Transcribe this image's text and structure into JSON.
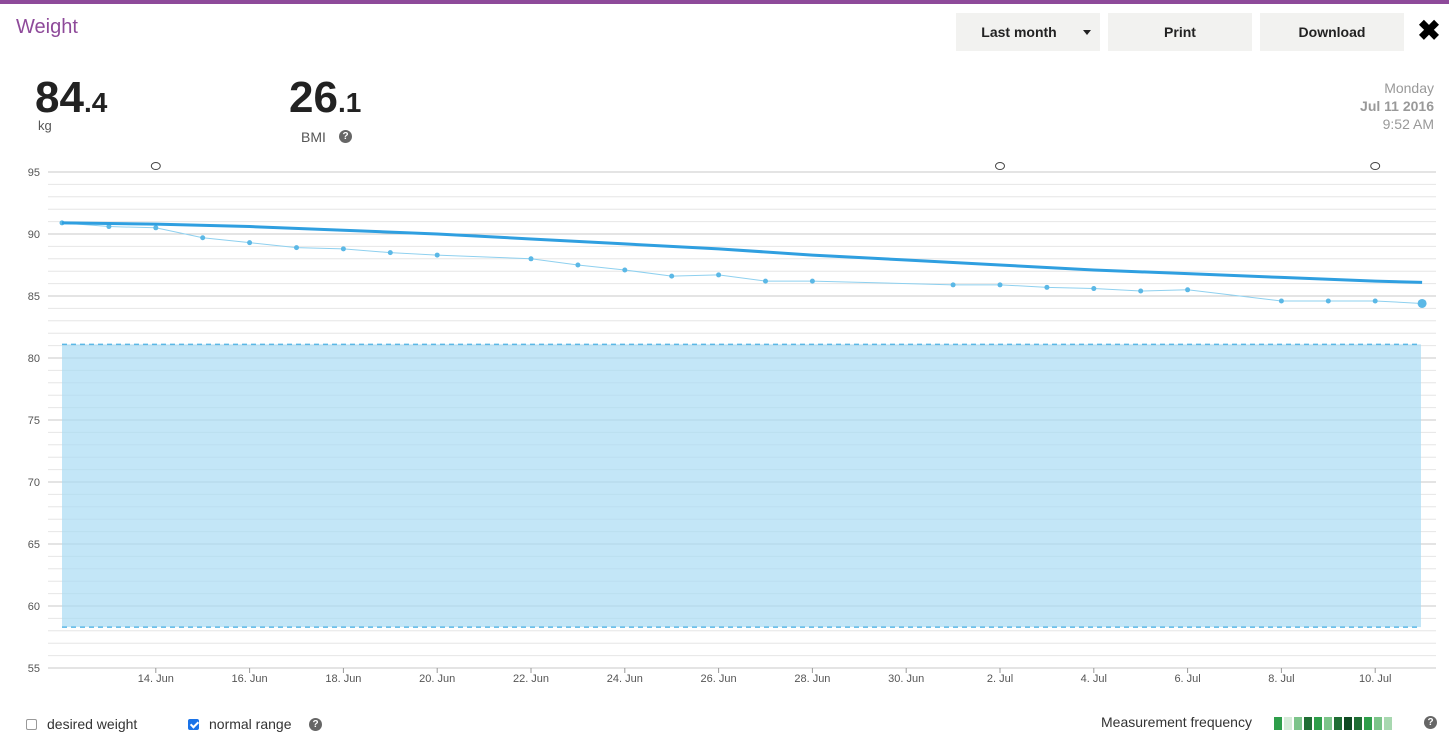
{
  "header": {
    "title": "Weight",
    "period_label": "Last month",
    "print_label": "Print",
    "download_label": "Download",
    "close_glyph": "✖"
  },
  "stats": {
    "weight_int": "84",
    "weight_dec": ".4",
    "weight_unit": "kg",
    "bmi_int": "26",
    "bmi_dec": ".1",
    "bmi_label": "BMI",
    "help_glyph": "?"
  },
  "date": {
    "weekday": "Monday",
    "date": "Jul 11 2016",
    "time": "9:52 AM"
  },
  "legend": {
    "desired_weight": "desired weight",
    "desired_checked": false,
    "normal_range": "normal range",
    "normal_checked": true,
    "frequency_label": "Measurement frequency",
    "frequency_colors": [
      "#2e9e4a",
      "#d6ebd9",
      "#7cc48a",
      "#1f6e34",
      "#2e9e4a",
      "#7cc48a",
      "#1f6e34",
      "#0f4a22",
      "#1f6e34",
      "#2e9e4a",
      "#7cc48a",
      "#a8d8b0"
    ]
  },
  "chart_data": {
    "type": "line",
    "x_tick_labels": [
      "14. Jun",
      "16. Jun",
      "18. Jun",
      "20. Jun",
      "22. Jun",
      "24. Jun",
      "26. Jun",
      "28. Jun",
      "30. Jun",
      "2. Jul",
      "4. Jul",
      "6. Jul",
      "8. Jul",
      "10. Jul"
    ],
    "y_tick_labels": [
      "95",
      "90",
      "85",
      "80",
      "75",
      "70",
      "65",
      "60",
      "55"
    ],
    "ylim": [
      55,
      95
    ],
    "normal_range": [
      58.3,
      81.1
    ],
    "series": [
      {
        "x": [
          "2016-06-12",
          "2016-06-13",
          "2016-06-14",
          "2016-06-15",
          "2016-06-16",
          "2016-06-17",
          "2016-06-18",
          "2016-06-19",
          "2016-06-20",
          "2016-06-22",
          "2016-06-23",
          "2016-06-24",
          "2016-06-25",
          "2016-06-26",
          "2016-06-27",
          "2016-06-28",
          "2016-07-01",
          "2016-07-02",
          "2016-07-03",
          "2016-07-04",
          "2016-07-05",
          "2016-07-06",
          "2016-07-08",
          "2016-07-09",
          "2016-07-10",
          "2016-07-11"
        ],
        "values": [
          90.9,
          90.6,
          90.5,
          89.7,
          89.3,
          88.9,
          88.8,
          88.5,
          88.3,
          88.0,
          87.5,
          87.1,
          86.6,
          86.7,
          86.2,
          86.2,
          85.9,
          85.9,
          85.7,
          85.6,
          85.4,
          85.5,
          84.6,
          84.6,
          84.6,
          84.4
        ]
      },
      {
        "x": [
          "2016-06-12",
          "2016-06-14",
          "2016-06-16",
          "2016-06-18",
          "2016-06-20",
          "2016-06-22",
          "2016-06-24",
          "2016-06-26",
          "2016-06-28",
          "2016-06-30",
          "2016-07-02",
          "2016-07-04",
          "2016-07-06",
          "2016-07-08",
          "2016-07-10",
          "2016-07-11"
        ],
        "values": [
          90.9,
          90.8,
          90.6,
          90.3,
          90.0,
          89.6,
          89.2,
          88.8,
          88.3,
          87.9,
          87.5,
          87.1,
          86.8,
          86.5,
          86.2,
          86.1
        ]
      }
    ],
    "note_markers": [
      "2016-06-14",
      "2016-07-02",
      "2016-07-10"
    ]
  }
}
